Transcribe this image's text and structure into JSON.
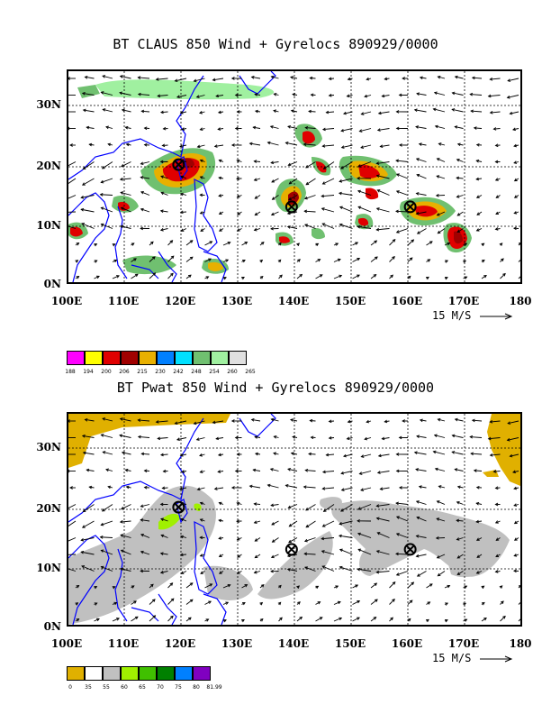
{
  "panels": [
    {
      "id": "claus",
      "title": "BT CLAUS 850 Wind + Gyrelocs 890929/0000",
      "lat_labels": [
        "30N",
        "20N",
        "10N",
        "0N"
      ],
      "lon_labels": [
        "100E",
        "110E",
        "120E",
        "130E",
        "140E",
        "150E",
        "160E",
        "170E",
        "180"
      ],
      "scale_label": "15 M/S",
      "legend": {
        "colors": [
          "#ff00ff",
          "#ffff00",
          "#e00000",
          "#a00000",
          "#e8b000",
          "#0080ff",
          "#00e0ff",
          "#70c070",
          "#a0f0a0",
          "#e0e0e0"
        ],
        "labels": [
          "188",
          "194",
          "200",
          "206",
          "215",
          "230",
          "242",
          "248",
          "254",
          "260",
          "265"
        ]
      },
      "gyrelocs": [
        {
          "lon": 119.5,
          "lat": 19.5
        },
        {
          "lon": 139.5,
          "lat": 12.5
        },
        {
          "lon": 160.5,
          "lat": 12.5
        }
      ]
    },
    {
      "id": "pwat",
      "title": "BT Pwat 850 Wind + Gyrelocs 890929/0000",
      "lat_labels": [
        "30N",
        "20N",
        "10N",
        "0N"
      ],
      "lon_labels": [
        "100E",
        "110E",
        "120E",
        "130E",
        "140E",
        "150E",
        "160E",
        "170E",
        "180"
      ],
      "scale_label": "15 M/S",
      "legend": {
        "colors": [
          "#e0b000",
          "#ffffff",
          "#c0c0c0",
          "#a0f000",
          "#40c000",
          "#008000",
          "#0080ff",
          "#8000c0"
        ],
        "labels": [
          "0",
          "35",
          "55",
          "60",
          "65",
          "70",
          "75",
          "80",
          "81.99"
        ]
      },
      "gyrelocs": [
        {
          "lon": 119.5,
          "lat": 19.5
        },
        {
          "lon": 139.5,
          "lat": 12.5
        },
        {
          "lon": 160.5,
          "lat": 12.5
        }
      ]
    }
  ],
  "colors": {
    "coast": "#0000ff",
    "pwat_dry": "#e0b000",
    "pwat_moist": "#c0c0c0",
    "pwat_wet": "#a0f000"
  }
}
